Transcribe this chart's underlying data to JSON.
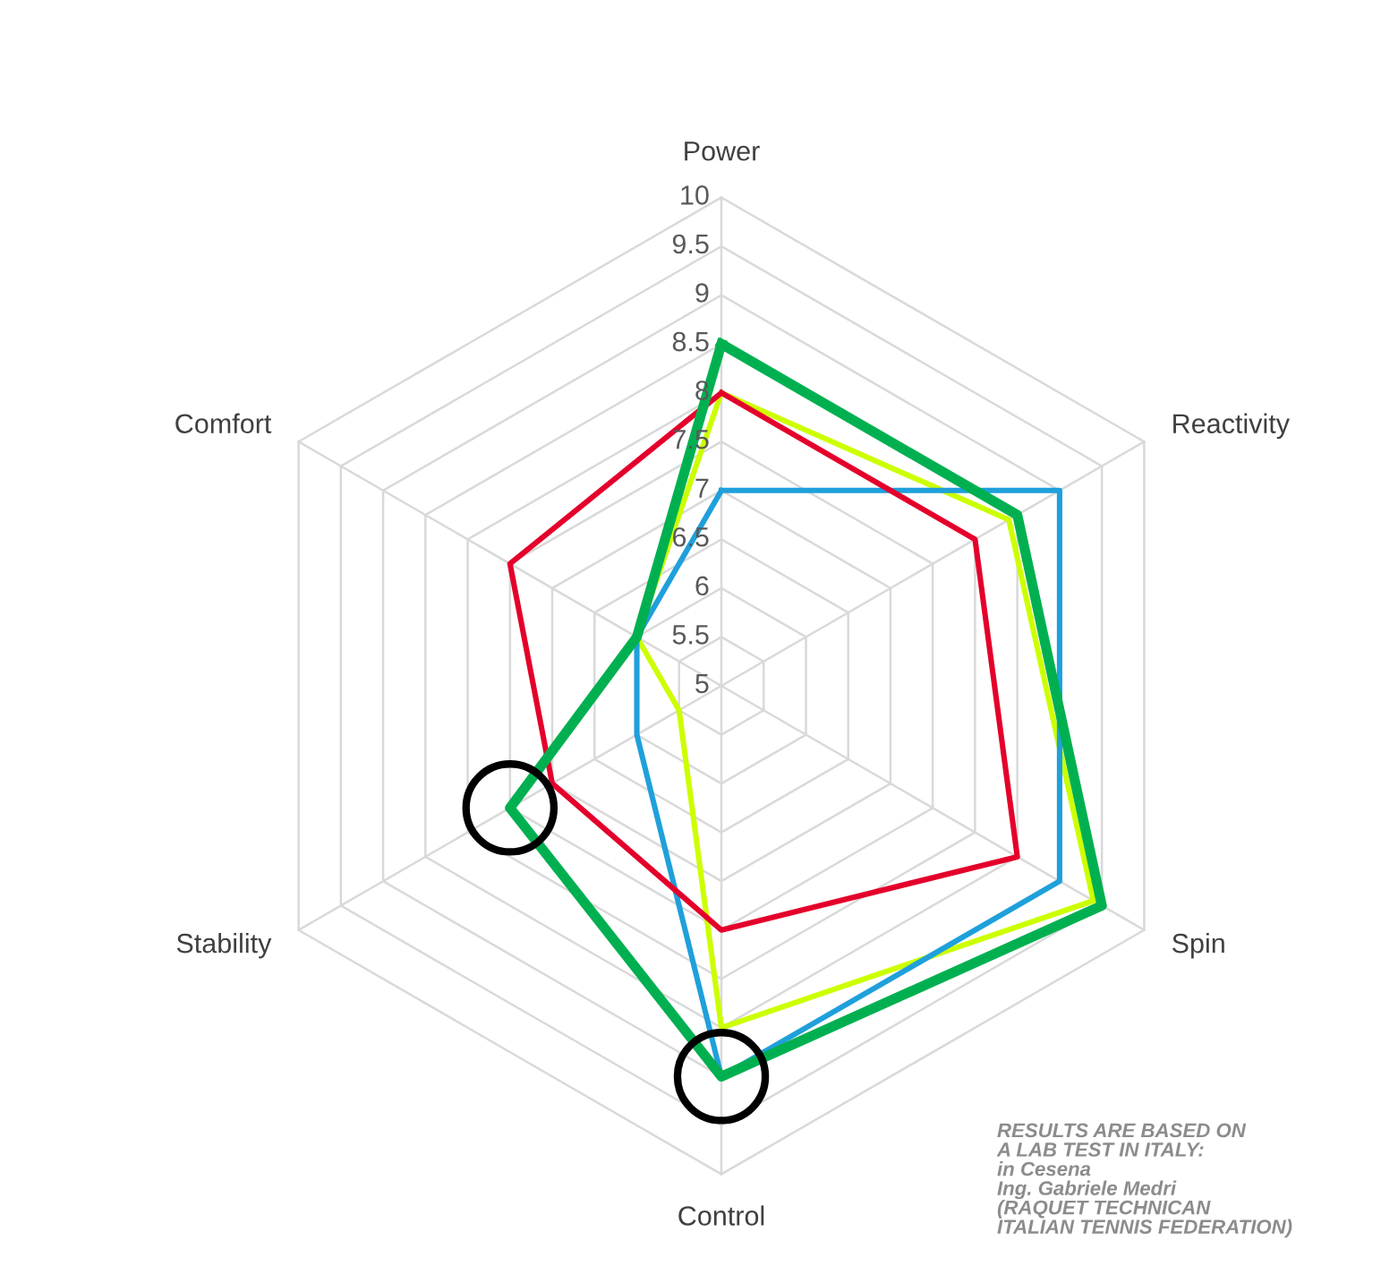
{
  "chart_data": {
    "type": "radar",
    "categories": [
      "Power",
      "Reactivity",
      "Spin",
      "Control",
      "Stability",
      "Comfort"
    ],
    "series": [
      {
        "color": "#ccff00",
        "values": [
          8,
          8.4,
          9.4,
          8.5,
          5.5,
          6
        ]
      },
      {
        "color": "#1fa0db",
        "values": [
          7,
          9,
          9,
          9,
          6,
          6
        ]
      },
      {
        "color": "#e4002b",
        "values": [
          8,
          8,
          8.5,
          7.5,
          7,
          7.5
        ]
      },
      {
        "color": "#00b050",
        "values": [
          8.5,
          8.5,
          9.5,
          9,
          7.5,
          6
        ]
      }
    ],
    "ylim": [
      5,
      10
    ],
    "yticks": [
      5,
      5.5,
      6,
      6.5,
      7,
      7.5,
      8,
      8.5,
      9,
      9.5,
      10
    ],
    "grid": true,
    "annotations": [
      "RESULTS ARE BASED ON\nA LAB TEST IN ITALY:\nin Cesena\nIng. Gabriele Medri\n(RAQUET TECHNICAN\nITALIAN TENNIS FEDERATION)"
    ]
  }
}
